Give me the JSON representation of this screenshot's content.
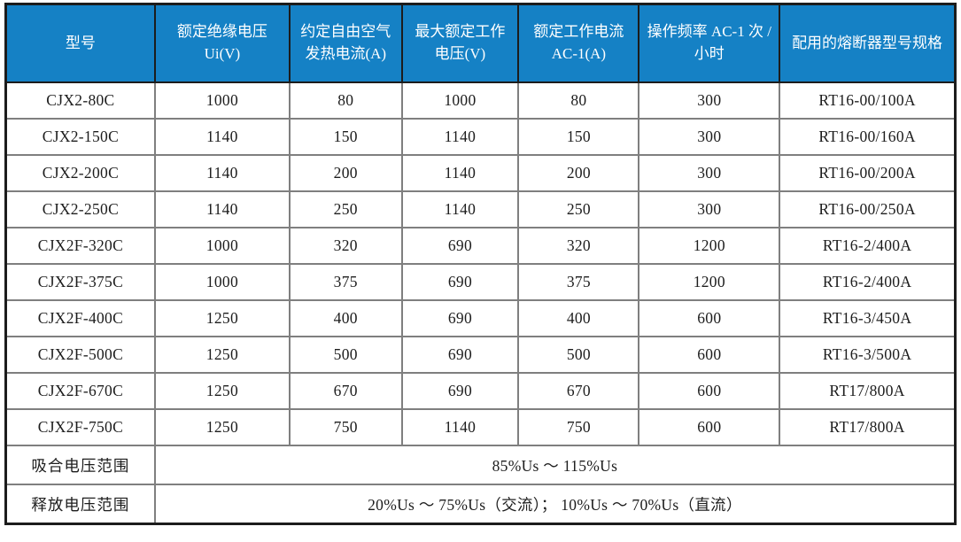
{
  "table": {
    "title_semantics": "contactor-specification-table",
    "colors": {
      "header_bg": "#1581c5",
      "header_text": "#ffffff",
      "grid_line": "#7f7f7f",
      "outer_border": "#1c1c1c",
      "body_text": "#1d1d1d"
    },
    "columns": [
      {
        "label": "型号"
      },
      {
        "label": "额定绝缘电压 Ui(V)"
      },
      {
        "label": "约定自由空气发热电流(A)"
      },
      {
        "label": "最大额定工作电压(V)"
      },
      {
        "label": "额定工作电流 AC-1(A)"
      },
      {
        "label": "操作频率 AC-1 次 / 小时"
      },
      {
        "label": "配用的熔断器型号规格"
      }
    ],
    "rows": [
      [
        "CJX2-80C",
        "1000",
        "80",
        "1000",
        "80",
        "300",
        "RT16-00/100A"
      ],
      [
        "CJX2-150C",
        "1140",
        "150",
        "1140",
        "150",
        "300",
        "RT16-00/160A"
      ],
      [
        "CJX2-200C",
        "1140",
        "200",
        "1140",
        "200",
        "300",
        "RT16-00/200A"
      ],
      [
        "CJX2-250C",
        "1140",
        "250",
        "1140",
        "250",
        "300",
        "RT16-00/250A"
      ],
      [
        "CJX2F-320C",
        "1000",
        "320",
        "690",
        "320",
        "1200",
        "RT16-2/400A"
      ],
      [
        "CJX2F-375C",
        "1000",
        "375",
        "690",
        "375",
        "1200",
        "RT16-2/400A"
      ],
      [
        "CJX2F-400C",
        "1250",
        "400",
        "690",
        "400",
        "600",
        "RT16-3/450A"
      ],
      [
        "CJX2F-500C",
        "1250",
        "500",
        "690",
        "500",
        "600",
        "RT16-3/500A"
      ],
      [
        "CJX2F-670C",
        "1250",
        "670",
        "690",
        "670",
        "600",
        "RT17/800A"
      ],
      [
        "CJX2F-750C",
        "1250",
        "750",
        "1140",
        "750",
        "600",
        "RT17/800A"
      ]
    ],
    "footer_rows": [
      {
        "label": "吸合电压范围",
        "value": "85%Us ～ 115%Us"
      },
      {
        "label": "释放电压范围",
        "value": "20%Us ～ 75%Us（交流）； 10%Us ～ 70%Us（直流）"
      }
    ]
  }
}
